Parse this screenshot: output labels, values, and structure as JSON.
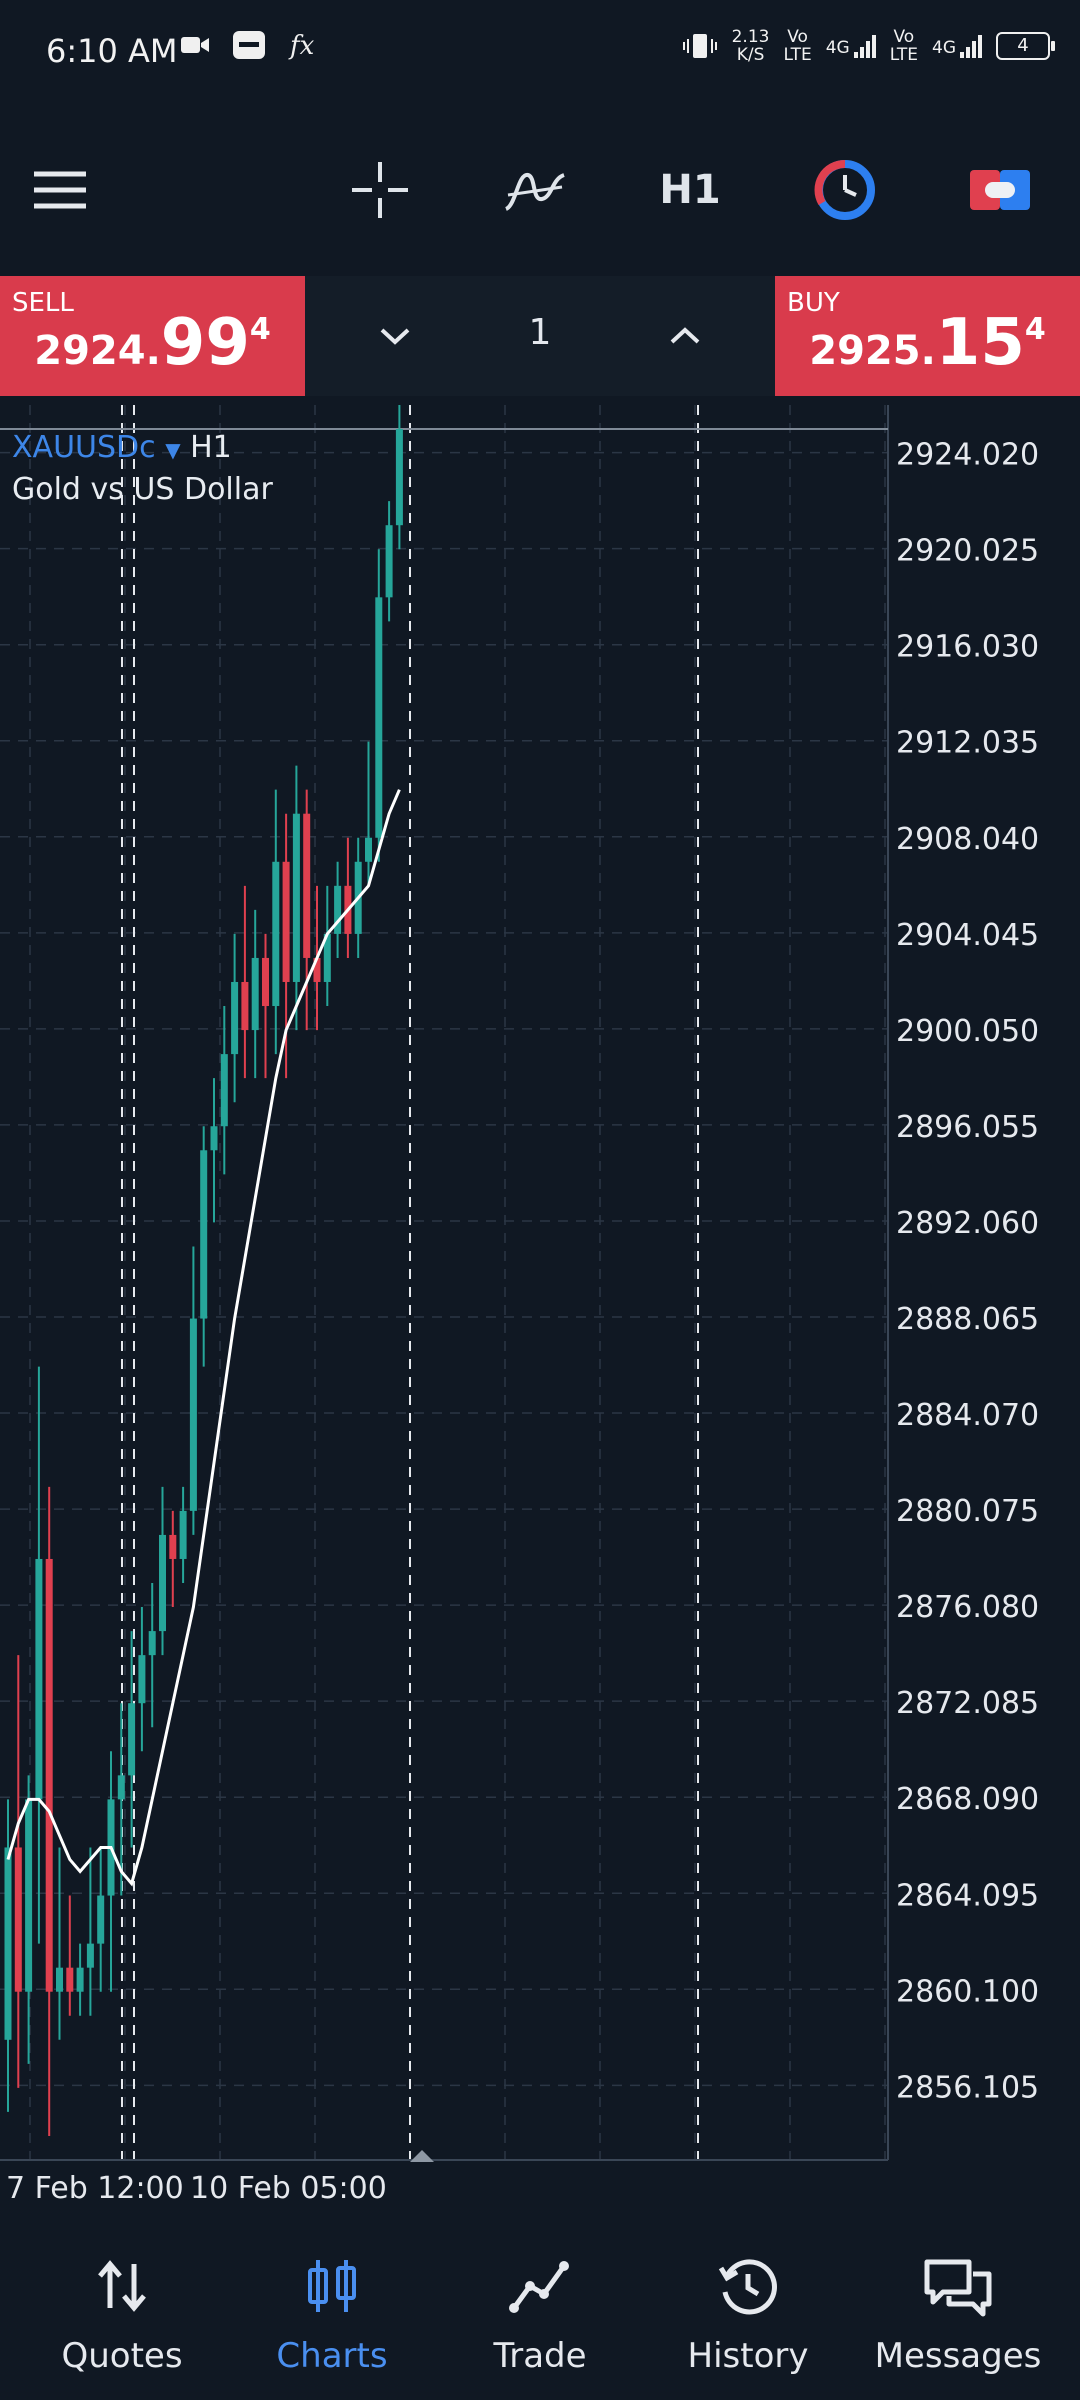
{
  "status_bar": {
    "time": "6:10 AM",
    "data_speed_top": "2.13",
    "data_speed_bottom": "K/S",
    "sim1_top": "Vo",
    "sim1_bottom": "LTE",
    "net1": "4G",
    "sim2_top": "Vo",
    "sim2_bottom": "LTE",
    "net2": "4G",
    "battery": "4",
    "icons": [
      "video-camera-icon",
      "app-badge-icon",
      "fx-icon",
      "vibrate-icon",
      "signal-icon",
      "battery-icon"
    ]
  },
  "toolbar": {
    "timeframe": "H1",
    "icons": [
      "menu-icon",
      "crosshair-icon",
      "indicators-icon",
      "clock-icon",
      "trade-toggle-icon"
    ]
  },
  "trade_panel": {
    "sell_label": "SELL",
    "sell_price_small": "2924.",
    "sell_price_big": "99",
    "sell_price_sup": "4",
    "buy_label": "BUY",
    "buy_price_small": "2925.",
    "buy_price_big": "15",
    "buy_price_sup": "4",
    "quantity": "1"
  },
  "chart_header": {
    "symbol": "XAUUSDc",
    "timeframe": "H1",
    "description": "Gold vs US Dollar"
  },
  "chart_data": {
    "type": "candlestick",
    "y_ticks": [
      "2924.020",
      "2920.025",
      "2916.030",
      "2912.035",
      "2908.040",
      "2904.045",
      "2900.050",
      "2896.055",
      "2892.060",
      "2888.065",
      "2884.070",
      "2880.075",
      "2876.080",
      "2872.085",
      "2868.090",
      "2864.095",
      "2860.100",
      "2856.105"
    ],
    "x_ticks": [
      "7 Feb 12:00",
      "10 Feb 05:00"
    ],
    "ylim": [
      2853,
      2926
    ],
    "colors": {
      "up": "#26a69a",
      "down": "#e0404f",
      "ma": "#ffffff",
      "grid": "#2b3645"
    },
    "candles": [
      {
        "o": 2858,
        "h": 2868,
        "l": 2855,
        "c": 2866
      },
      {
        "o": 2866,
        "h": 2874,
        "l": 2856,
        "c": 2860
      },
      {
        "o": 2860,
        "h": 2869,
        "l": 2857,
        "c": 2868
      },
      {
        "o": 2868,
        "h": 2886,
        "l": 2862,
        "c": 2878
      },
      {
        "o": 2878,
        "h": 2881,
        "l": 2854,
        "c": 2860
      },
      {
        "o": 2860,
        "h": 2866,
        "l": 2858,
        "c": 2861
      },
      {
        "o": 2861,
        "h": 2864,
        "l": 2859,
        "c": 2860
      },
      {
        "o": 2860,
        "h": 2862,
        "l": 2859,
        "c": 2861
      },
      {
        "o": 2861,
        "h": 2866,
        "l": 2859,
        "c": 2862
      },
      {
        "o": 2862,
        "h": 2866,
        "l": 2860,
        "c": 2864
      },
      {
        "o": 2864,
        "h": 2870,
        "l": 2860,
        "c": 2868
      },
      {
        "o": 2868,
        "h": 2872,
        "l": 2864,
        "c": 2869
      },
      {
        "o": 2869,
        "h": 2875,
        "l": 2866,
        "c": 2872
      },
      {
        "o": 2872,
        "h": 2876,
        "l": 2870,
        "c": 2874
      },
      {
        "o": 2874,
        "h": 2877,
        "l": 2871,
        "c": 2875
      },
      {
        "o": 2875,
        "h": 2881,
        "l": 2874,
        "c": 2879
      },
      {
        "o": 2879,
        "h": 2880,
        "l": 2876,
        "c": 2878
      },
      {
        "o": 2878,
        "h": 2881,
        "l": 2877,
        "c": 2880
      },
      {
        "o": 2880,
        "h": 2891,
        "l": 2879,
        "c": 2888
      },
      {
        "o": 2888,
        "h": 2896,
        "l": 2886,
        "c": 2895
      },
      {
        "o": 2895,
        "h": 2898,
        "l": 2892,
        "c": 2896
      },
      {
        "o": 2896,
        "h": 2901,
        "l": 2894,
        "c": 2899
      },
      {
        "o": 2899,
        "h": 2904,
        "l": 2897,
        "c": 2902
      },
      {
        "o": 2902,
        "h": 2906,
        "l": 2898,
        "c": 2900
      },
      {
        "o": 2900,
        "h": 2905,
        "l": 2898,
        "c": 2903
      },
      {
        "o": 2903,
        "h": 2904,
        "l": 2898,
        "c": 2901
      },
      {
        "o": 2901,
        "h": 2910,
        "l": 2899,
        "c": 2907
      },
      {
        "o": 2907,
        "h": 2909,
        "l": 2898,
        "c": 2902
      },
      {
        "o": 2902,
        "h": 2911,
        "l": 2900,
        "c": 2909
      },
      {
        "o": 2909,
        "h": 2910,
        "l": 2900,
        "c": 2903
      },
      {
        "o": 2903,
        "h": 2906,
        "l": 2900,
        "c": 2902
      },
      {
        "o": 2902,
        "h": 2906,
        "l": 2901,
        "c": 2904
      },
      {
        "o": 2904,
        "h": 2907,
        "l": 2903,
        "c": 2906
      },
      {
        "o": 2906,
        "h": 2908,
        "l": 2903,
        "c": 2904
      },
      {
        "o": 2904,
        "h": 2908,
        "l": 2903,
        "c": 2907
      },
      {
        "o": 2907,
        "h": 2912,
        "l": 2906,
        "c": 2908
      },
      {
        "o": 2908,
        "h": 2920,
        "l": 2907,
        "c": 2918
      },
      {
        "o": 2918,
        "h": 2922,
        "l": 2917,
        "c": 2921
      },
      {
        "o": 2921,
        "h": 2926,
        "l": 2920,
        "c": 2925
      }
    ],
    "ma": [
      2865.5,
      2867,
      2868,
      2868,
      2867.5,
      2866.5,
      2865.5,
      2865,
      2865.5,
      2866,
      2866,
      2865,
      2864.5,
      2866,
      2868,
      2870,
      2872,
      2874,
      2876,
      2879,
      2882,
      2885,
      2888,
      2890.5,
      2893,
      2895.5,
      2898,
      2900,
      2901,
      2902,
      2903,
      2904,
      2904.5,
      2905,
      2905.5,
      2906,
      2907.5,
      2909,
      2910
    ]
  },
  "bottom_nav": [
    {
      "label": "Quotes",
      "icon": "quotes-arrows-icon",
      "active": false
    },
    {
      "label": "Charts",
      "icon": "candles-icon",
      "active": true
    },
    {
      "label": "Trade",
      "icon": "trade-line-icon",
      "active": false
    },
    {
      "label": "History",
      "icon": "history-clock-icon",
      "active": false
    },
    {
      "label": "Messages",
      "icon": "chat-bubbles-icon",
      "active": false
    }
  ]
}
